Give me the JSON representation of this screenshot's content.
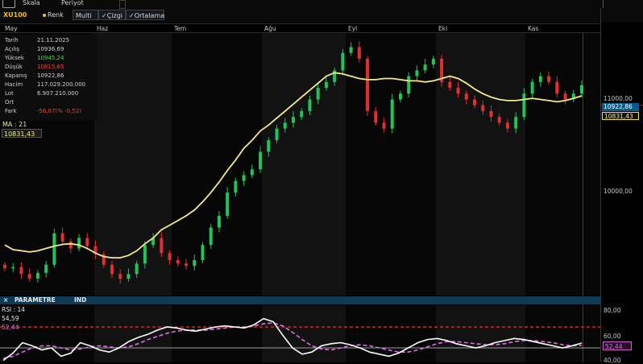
{
  "toolbar": {
    "row1": [
      "Skala",
      "Periyot"
    ],
    "symbol": "XU100",
    "chips": [
      "Renk",
      "Multi",
      "Çizgi",
      "Ortalama"
    ]
  },
  "months": [
    "May",
    "Haz",
    "Tem",
    "Ağu",
    "Eyl",
    "Eki",
    "Kas"
  ],
  "info_box": {
    "rows": [
      {
        "label": "Tarih",
        "value": "21.11.2025",
        "color": "#d0d0d0"
      },
      {
        "label": "Açılış",
        "value": "10936,69",
        "color": "#d0d0d0"
      },
      {
        "label": "Yüksek",
        "value": "10945,24",
        "color": "#3ddc3d"
      },
      {
        "label": "Düşük",
        "value": "10815,65",
        "color": "#ff3b3b"
      },
      {
        "label": "Kapanış",
        "value": "10922,86",
        "color": "#d0d0d0"
      },
      {
        "label": "Hacim",
        "value": "117.029.200.000",
        "color": "#d0d0d0"
      },
      {
        "label": "Lot",
        "value": "6.907.210.000",
        "color": "#d0d0d0"
      },
      {
        "label": "Ort",
        "value": "",
        "color": "#d0d0d0"
      },
      {
        "label": "Fark",
        "value": "-56,87(% -0,52)",
        "color": "#ff3b3b"
      }
    ]
  },
  "ma": {
    "label": "MA : 21",
    "value": "10831,43"
  },
  "price_axis": {
    "labels": [
      "11000,00",
      "10000,00"
    ],
    "last_tag": "10922,86",
    "ma_tag": "10831,43"
  },
  "panel": {
    "close": "×",
    "title": "PARAMETRE",
    "tab": "IND"
  },
  "rsi": {
    "label": "RSI : 14",
    "v1": "54,59",
    "v2": "52,44",
    "axis": [
      "80,00",
      "60,00",
      "40,00"
    ],
    "tag": "52,44"
  },
  "colors": {
    "up": "#22c35a",
    "down": "#e03030",
    "ma": "#f5e98a",
    "rsi": "#ffffff",
    "rsi_ma": "#e070e0",
    "overbought": "#e02020"
  },
  "chart_data": [
    {
      "type": "candlestick",
      "title": "XU100",
      "x_labels": [
        "May",
        "Haz",
        "Tem",
        "Ağu",
        "Eyl",
        "Eki",
        "Kas"
      ],
      "ylim": [
        9150,
        11350
      ],
      "y_ticks": [
        10000,
        11000
      ],
      "series": [
        {
          "name": "MA : 21",
          "type": "line",
          "values": [
            9550,
            9510,
            9500,
            9490,
            9500,
            9520,
            9540,
            9555,
            9560,
            9550,
            9520,
            9480,
            9450,
            9440,
            9440,
            9460,
            9500,
            9560,
            9610,
            9680,
            9720,
            9760,
            9800,
            9850,
            9920,
            10000,
            10090,
            10190,
            10280,
            10380,
            10450,
            10530,
            10580,
            10640,
            10700,
            10760,
            10820,
            10880,
            10940,
            11000,
            11030,
            11020,
            11000,
            10980,
            10970,
            10970,
            10980,
            10980,
            10970,
            10960,
            10960,
            10950,
            10960,
            10980,
            11000,
            10980,
            10940,
            10890,
            10850,
            10820,
            10800,
            10790,
            10790,
            10800,
            10810,
            10800,
            10790,
            10780,
            10790,
            10810,
            10831
          ]
        },
        {
          "name": "Kapanış",
          "type": "candle",
          "values": [
            9350,
            9360,
            9300,
            9260,
            9310,
            9380,
            9650,
            9580,
            9520,
            9610,
            9540,
            9470,
            9380,
            9300,
            9260,
            9300,
            9390,
            9550,
            9610,
            9480,
            9420,
            9390,
            9370,
            9420,
            9550,
            9700,
            9800,
            10000,
            10100,
            10150,
            10200,
            10350,
            10450,
            10550,
            10600,
            10650,
            10700,
            10800,
            10900,
            10950,
            11050,
            11200,
            11250,
            11150,
            10700,
            10600,
            10550,
            10800,
            10850,
            11000,
            11050,
            11100,
            11150,
            10950,
            10900,
            10850,
            10800,
            10750,
            10700,
            10650,
            10600,
            10550,
            10650,
            10850,
            10950,
            11000,
            10950,
            10850,
            10800,
            10850,
            10922
          ]
        }
      ]
    },
    {
      "type": "line",
      "title": "RSI : 14",
      "ylim": [
        30,
        90
      ],
      "y_ticks": [
        40,
        60,
        80
      ],
      "overbought": 70,
      "series": [
        {
          "name": "RSI",
          "values": [
            38,
            45,
            55,
            52,
            48,
            50,
            42,
            45,
            55,
            52,
            48,
            46,
            50,
            56,
            60,
            63,
            67,
            70,
            69,
            67,
            66,
            68,
            70,
            71,
            70,
            69,
            72,
            78,
            75,
            62,
            50,
            44,
            46,
            52,
            54,
            55,
            53,
            50,
            46,
            44,
            42,
            45,
            50,
            55,
            58,
            59,
            57,
            54,
            52,
            50,
            52,
            55,
            57,
            59,
            58,
            56,
            54,
            52,
            50,
            52,
            54.59
          ]
        },
        {
          "name": "RSI MA",
          "values": [
            40,
            42,
            46,
            50,
            52,
            52,
            50,
            48,
            49,
            51,
            52,
            51,
            50,
            51,
            54,
            58,
            61,
            64,
            66,
            67,
            67,
            67,
            68,
            69,
            70,
            70,
            71,
            73,
            74,
            71,
            65,
            58,
            52,
            49,
            48,
            50,
            52,
            53,
            52,
            50,
            48,
            46,
            46,
            48,
            51,
            54,
            56,
            56,
            55,
            54,
            53,
            53,
            54,
            56,
            57,
            57,
            56,
            55,
            53,
            52,
            52.44
          ]
        }
      ]
    }
  ]
}
